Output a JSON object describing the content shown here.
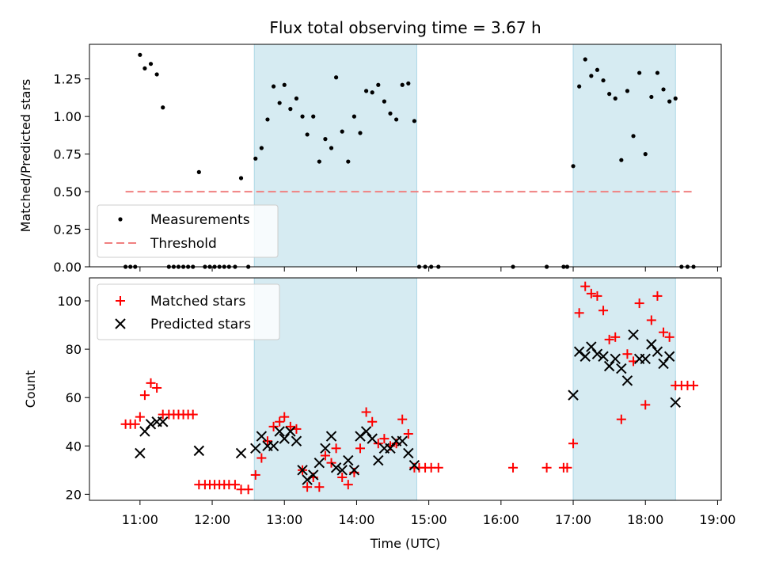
{
  "chart_data": [
    {
      "type": "scatter",
      "title": "Flux total observing time = 3.67 h",
      "xlabel": "",
      "ylabel": "Matched/Predicted stars",
      "xlim": [
        "10:18",
        "19:03"
      ],
      "ylim": [
        0,
        1.48
      ],
      "yticks": [
        "0.00",
        "0.25",
        "0.50",
        "0.75",
        "1.00",
        "1.25"
      ],
      "ytick_values": [
        0,
        0.25,
        0.5,
        0.75,
        1.0,
        1.25
      ],
      "legend": {
        "position": "lower-left",
        "entries": [
          "Measurements",
          "Threshold"
        ]
      },
      "shaded_intervals": [
        [
          "12:35",
          "14:50"
        ],
        [
          "17:00",
          "18:25"
        ]
      ],
      "threshold": {
        "name": "Threshold",
        "value": 0.5,
        "x": [
          "10:48",
          "18:40"
        ],
        "color": "#f08080"
      },
      "series": [
        {
          "name": "Measurements",
          "color": "#000000",
          "points": [
            [
              "10:48",
              0
            ],
            [
              "10:52",
              0
            ],
            [
              "10:56",
              0
            ],
            [
              "11:00",
              1.41
            ],
            [
              "11:04",
              1.32
            ],
            [
              "11:09",
              1.35
            ],
            [
              "11:14",
              1.28
            ],
            [
              "11:19",
              1.06
            ],
            [
              "11:24",
              0
            ],
            [
              "11:28",
              0
            ],
            [
              "11:32",
              0
            ],
            [
              "11:36",
              0
            ],
            [
              "11:40",
              0
            ],
            [
              "11:44",
              0
            ],
            [
              "11:49",
              0.63
            ],
            [
              "11:54",
              0
            ],
            [
              "11:58",
              0
            ],
            [
              "12:02",
              0
            ],
            [
              "12:06",
              0
            ],
            [
              "12:10",
              0
            ],
            [
              "12:14",
              0
            ],
            [
              "12:19",
              0
            ],
            [
              "12:24",
              0.59
            ],
            [
              "12:30",
              0
            ],
            [
              "12:36",
              0.72
            ],
            [
              "12:41",
              0.79
            ],
            [
              "12:46",
              0.98
            ],
            [
              "12:51",
              1.2
            ],
            [
              "12:56",
              1.09
            ],
            [
              "13:00",
              1.21
            ],
            [
              "13:05",
              1.05
            ],
            [
              "13:10",
              1.12
            ],
            [
              "13:15",
              1.0
            ],
            [
              "13:19",
              0.88
            ],
            [
              "13:24",
              1.0
            ],
            [
              "13:29",
              0.7
            ],
            [
              "13:34",
              0.85
            ],
            [
              "13:39",
              0.79
            ],
            [
              "13:43",
              1.26
            ],
            [
              "13:48",
              0.9
            ],
            [
              "13:53",
              0.7
            ],
            [
              "13:58",
              1.0
            ],
            [
              "14:03",
              0.89
            ],
            [
              "14:08",
              1.17
            ],
            [
              "14:13",
              1.16
            ],
            [
              "14:18",
              1.21
            ],
            [
              "14:23",
              1.1
            ],
            [
              "14:28",
              1.02
            ],
            [
              "14:33",
              0.98
            ],
            [
              "14:38",
              1.21
            ],
            [
              "14:43",
              1.22
            ],
            [
              "14:48",
              0.97
            ],
            [
              "14:52",
              0
            ],
            [
              "14:57",
              0
            ],
            [
              "15:02",
              0
            ],
            [
              "15:08",
              0
            ],
            [
              "16:10",
              0
            ],
            [
              "16:38",
              0
            ],
            [
              "16:52",
              0
            ],
            [
              "16:55",
              0
            ],
            [
              "17:00",
              0.67
            ],
            [
              "17:05",
              1.2
            ],
            [
              "17:10",
              1.38
            ],
            [
              "17:15",
              1.27
            ],
            [
              "17:20",
              1.31
            ],
            [
              "17:25",
              1.24
            ],
            [
              "17:30",
              1.15
            ],
            [
              "17:35",
              1.12
            ],
            [
              "17:40",
              0.71
            ],
            [
              "17:45",
              1.17
            ],
            [
              "17:50",
              0.87
            ],
            [
              "17:55",
              1.29
            ],
            [
              "18:00",
              0.75
            ],
            [
              "18:05",
              1.13
            ],
            [
              "18:10",
              1.29
            ],
            [
              "18:15",
              1.18
            ],
            [
              "18:20",
              1.1
            ],
            [
              "18:25",
              1.12
            ],
            [
              "18:30",
              0
            ],
            [
              "18:35",
              0
            ],
            [
              "18:40",
              0
            ]
          ]
        }
      ]
    },
    {
      "type": "scatter",
      "title": "",
      "xlabel": "Time (UTC)",
      "ylabel": "Count",
      "xlim": [
        "10:18",
        "19:03"
      ],
      "ylim": [
        17.5,
        109.5
      ],
      "xticks": [
        "11:00",
        "12:00",
        "13:00",
        "14:00",
        "15:00",
        "16:00",
        "17:00",
        "18:00",
        "19:00"
      ],
      "yticks": [
        "20",
        "40",
        "60",
        "80",
        "100"
      ],
      "ytick_values": [
        20,
        40,
        60,
        80,
        100
      ],
      "legend": {
        "position": "upper-left",
        "entries": [
          "Matched stars",
          "Predicted stars"
        ]
      },
      "shaded_intervals": [
        [
          "12:35",
          "14:50"
        ],
        [
          "17:00",
          "18:25"
        ]
      ],
      "series": [
        {
          "name": "Matched stars",
          "marker": "plus",
          "color": "#ff0000",
          "points": [
            [
              "10:48",
              49
            ],
            [
              "10:52",
              49
            ],
            [
              "10:56",
              49
            ],
            [
              "11:00",
              52
            ],
            [
              "11:04",
              61
            ],
            [
              "11:09",
              66
            ],
            [
              "11:14",
              64
            ],
            [
              "11:19",
              53
            ],
            [
              "11:24",
              53
            ],
            [
              "11:28",
              53
            ],
            [
              "11:32",
              53
            ],
            [
              "11:36",
              53
            ],
            [
              "11:40",
              53
            ],
            [
              "11:44",
              53
            ],
            [
              "11:49",
              24
            ],
            [
              "11:54",
              24
            ],
            [
              "11:58",
              24
            ],
            [
              "12:02",
              24
            ],
            [
              "12:06",
              24
            ],
            [
              "12:10",
              24
            ],
            [
              "12:14",
              24
            ],
            [
              "12:19",
              24
            ],
            [
              "12:24",
              22
            ],
            [
              "12:30",
              22
            ],
            [
              "12:36",
              28
            ],
            [
              "12:41",
              35
            ],
            [
              "12:46",
              42
            ],
            [
              "12:51",
              48
            ],
            [
              "12:56",
              50
            ],
            [
              "13:00",
              52
            ],
            [
              "13:05",
              48
            ],
            [
              "13:10",
              47
            ],
            [
              "13:15",
              30
            ],
            [
              "13:19",
              23
            ],
            [
              "13:24",
              27
            ],
            [
              "13:29",
              23
            ],
            [
              "13:34",
              36
            ],
            [
              "13:39",
              33
            ],
            [
              "13:43",
              39
            ],
            [
              "13:48",
              27
            ],
            [
              "13:53",
              24
            ],
            [
              "13:58",
              29
            ],
            [
              "14:03",
              39
            ],
            [
              "14:08",
              54
            ],
            [
              "14:13",
              50
            ],
            [
              "14:18",
              41
            ],
            [
              "14:23",
              43
            ],
            [
              "14:28",
              40
            ],
            [
              "14:33",
              41
            ],
            [
              "14:38",
              51
            ],
            [
              "14:43",
              45
            ],
            [
              "14:48",
              31
            ],
            [
              "14:52",
              31
            ],
            [
              "14:57",
              31
            ],
            [
              "15:02",
              31
            ],
            [
              "15:08",
              31
            ],
            [
              "16:10",
              31
            ],
            [
              "16:38",
              31
            ],
            [
              "16:52",
              31
            ],
            [
              "16:55",
              31
            ],
            [
              "17:00",
              41
            ],
            [
              "17:05",
              95
            ],
            [
              "17:10",
              106
            ],
            [
              "17:15",
              103
            ],
            [
              "17:20",
              102
            ],
            [
              "17:25",
              96
            ],
            [
              "17:30",
              84
            ],
            [
              "17:35",
              85
            ],
            [
              "17:40",
              51
            ],
            [
              "17:45",
              78
            ],
            [
              "17:50",
              75
            ],
            [
              "17:55",
              99
            ],
            [
              "18:00",
              57
            ],
            [
              "18:05",
              92
            ],
            [
              "18:10",
              102
            ],
            [
              "18:15",
              87
            ],
            [
              "18:20",
              85
            ],
            [
              "18:25",
              65
            ],
            [
              "18:30",
              65
            ],
            [
              "18:35",
              65
            ],
            [
              "18:40",
              65
            ]
          ]
        },
        {
          "name": "Predicted stars",
          "marker": "x",
          "color": "#000000",
          "points": [
            [
              "11:00",
              37
            ],
            [
              "11:04",
              46
            ],
            [
              "11:09",
              49
            ],
            [
              "11:14",
              50
            ],
            [
              "11:19",
              50
            ],
            [
              "11:49",
              38
            ],
            [
              "12:24",
              37
            ],
            [
              "12:36",
              39
            ],
            [
              "12:41",
              44
            ],
            [
              "12:46",
              40
            ],
            [
              "12:51",
              40
            ],
            [
              "12:56",
              46
            ],
            [
              "13:00",
              43
            ],
            [
              "13:05",
              46
            ],
            [
              "13:10",
              42
            ],
            [
              "13:15",
              30
            ],
            [
              "13:19",
              26
            ],
            [
              "13:24",
              28
            ],
            [
              "13:29",
              33
            ],
            [
              "13:34",
              39
            ],
            [
              "13:39",
              44
            ],
            [
              "13:43",
              31
            ],
            [
              "13:48",
              30
            ],
            [
              "13:53",
              34
            ],
            [
              "13:58",
              30
            ],
            [
              "14:03",
              44
            ],
            [
              "14:08",
              46
            ],
            [
              "14:13",
              43
            ],
            [
              "14:18",
              34
            ],
            [
              "14:23",
              39
            ],
            [
              "14:28",
              39
            ],
            [
              "14:33",
              42
            ],
            [
              "14:38",
              42
            ],
            [
              "14:43",
              37
            ],
            [
              "14:48",
              32
            ],
            [
              "17:00",
              61
            ],
            [
              "17:05",
              79
            ],
            [
              "17:10",
              77
            ],
            [
              "17:15",
              81
            ],
            [
              "17:20",
              78
            ],
            [
              "17:25",
              77
            ],
            [
              "17:30",
              73
            ],
            [
              "17:35",
              76
            ],
            [
              "17:40",
              72
            ],
            [
              "17:45",
              67
            ],
            [
              "17:50",
              86
            ],
            [
              "17:55",
              76
            ],
            [
              "18:00",
              76
            ],
            [
              "18:05",
              82
            ],
            [
              "18:10",
              79
            ],
            [
              "18:15",
              74
            ],
            [
              "18:20",
              77
            ],
            [
              "18:25",
              58
            ]
          ]
        }
      ]
    }
  ]
}
